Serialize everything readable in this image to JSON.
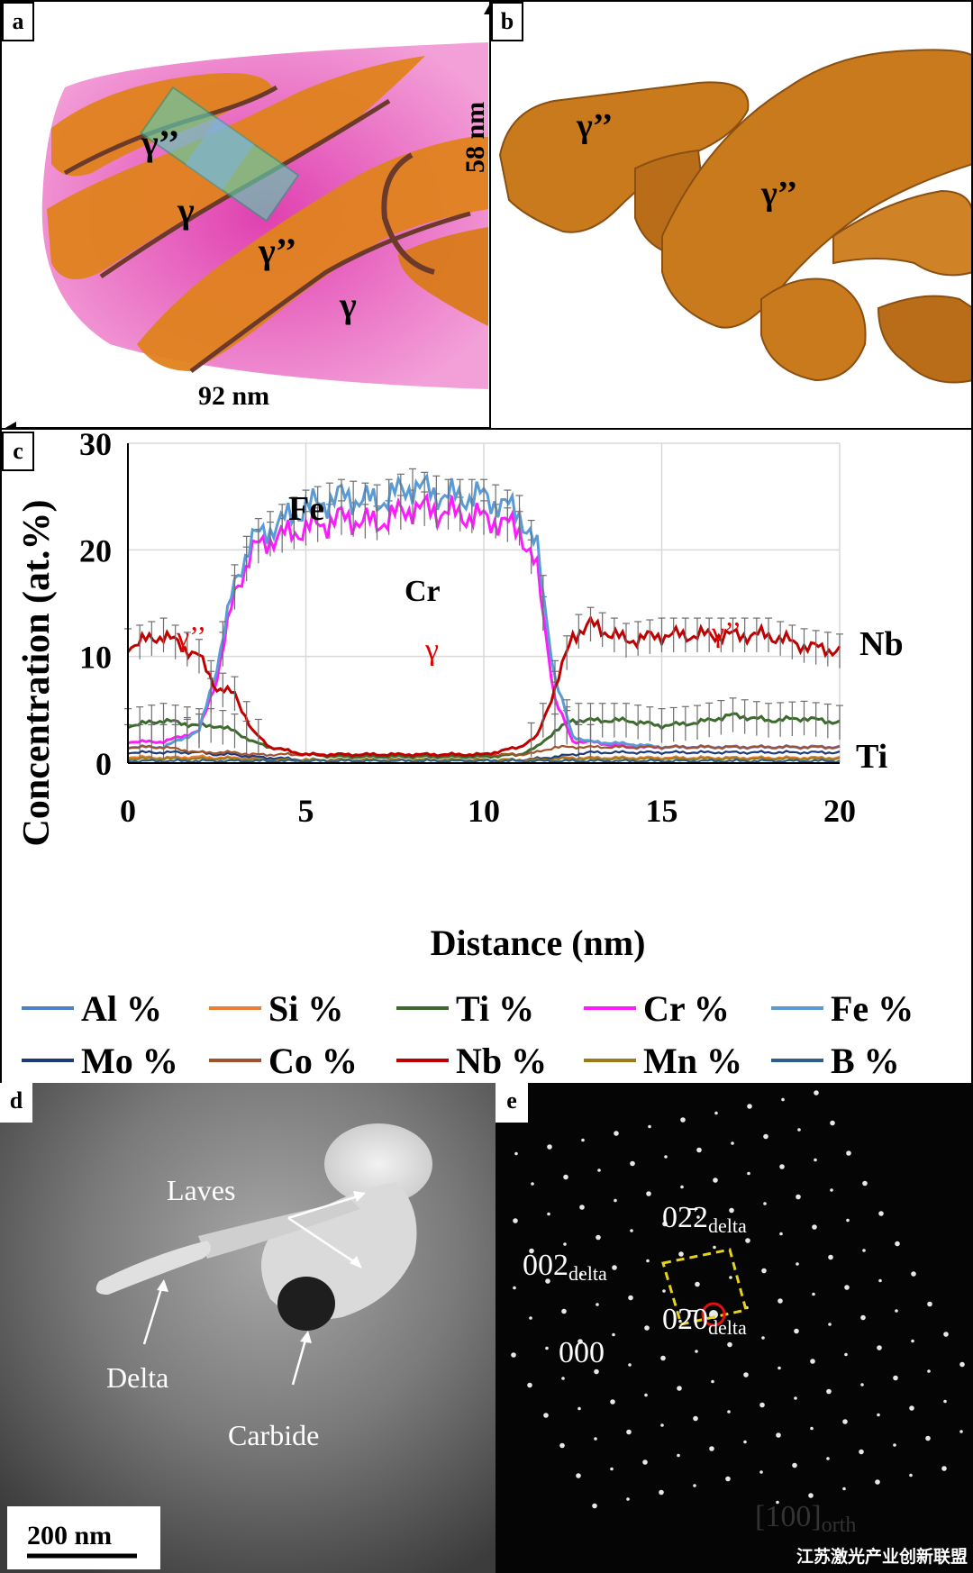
{
  "panels": {
    "a": {
      "label": "a",
      "phases": [
        "γ’’",
        "γ",
        "γ’’",
        "γ"
      ],
      "width_label": "92 nm",
      "height_label": "58 nm"
    },
    "b": {
      "label": "b",
      "phases": [
        "γ’’",
        "γ’’"
      ]
    },
    "c": {
      "label": "c",
      "annotations": {
        "fe": "Fe",
        "cr": "Cr",
        "nb": "Nb",
        "ti": "Ti",
        "gpp_left": "γ’’",
        "gamma": "γ",
        "gpp_right": "γ’’"
      }
    },
    "d": {
      "label": "d",
      "labels": {
        "laves": "Laves",
        "delta": "Delta",
        "carbide": "Carbide"
      },
      "scalebar": "200 nm"
    },
    "e": {
      "label": "e",
      "spots": {
        "s002": "002",
        "s022": "02̄2",
        "s020": "02̄0",
        "sub": "delta",
        "s000": "000"
      },
      "zone_axis": "[100]",
      "zone_sub": "orth"
    }
  },
  "chart_data": {
    "type": "line",
    "title": "",
    "xlabel": "Distance (nm)",
    "ylabel": "Concentration (at.%)",
    "xlim": [
      0,
      20
    ],
    "ylim": [
      0,
      30
    ],
    "xticks": [
      "0",
      "5",
      "10",
      "15",
      "20"
    ],
    "yticks": [
      "0",
      "10",
      "20",
      "30"
    ],
    "grid": true,
    "legend_position": "bottom",
    "x": [
      0,
      1,
      2,
      2.5,
      3,
      3.5,
      4,
      5,
      6,
      7,
      8,
      9,
      10,
      11,
      11.5,
      12,
      12.5,
      13,
      14,
      15,
      16,
      17,
      18,
      19,
      20
    ],
    "series": [
      {
        "name": "Al %",
        "color": "#4f7fc4",
        "values": [
          0.5,
          0.5,
          0.5,
          0.5,
          0.5,
          0.5,
          0.5,
          0.3,
          0.3,
          0.3,
          0.3,
          0.3,
          0.3,
          0.3,
          0.4,
          0.5,
          0.5,
          0.5,
          0.5,
          0.5,
          0.5,
          0.5,
          0.5,
          0.5,
          0.5
        ]
      },
      {
        "name": "Si %",
        "color": "#ed7d31",
        "values": [
          0.6,
          0.5,
          0.6,
          0.5,
          0.5,
          0.4,
          0.4,
          0.3,
          0.3,
          0.3,
          0.3,
          0.3,
          0.3,
          0.3,
          0.3,
          0.4,
          0.5,
          0.5,
          0.5,
          0.5,
          0.5,
          0.5,
          0.5,
          0.5,
          0.5
        ]
      },
      {
        "name": "Ti %",
        "color": "#3a6b2a",
        "values": [
          3.5,
          4,
          3.5,
          3.5,
          3,
          2,
          1.5,
          0.8,
          0.6,
          0.6,
          0.6,
          0.6,
          0.6,
          0.8,
          1.5,
          3,
          4,
          4,
          4,
          3.5,
          3.8,
          4.5,
          4,
          4.2,
          3.8
        ]
      },
      {
        "name": "Cr %",
        "color": "#ff1aff",
        "values": [
          2,
          2,
          3,
          8,
          16,
          20,
          21,
          22,
          23,
          22.5,
          24,
          23.5,
          23,
          22,
          18,
          6,
          2,
          2,
          1.5,
          1.5,
          1.5,
          1.5,
          1.5,
          1.5,
          1.5
        ]
      },
      {
        "name": "Fe %",
        "color": "#5b9bd5",
        "values": [
          1.5,
          1.5,
          3,
          9,
          17,
          21,
          22,
          24,
          25,
          24.5,
          26,
          25,
          25,
          23.5,
          20,
          8,
          2.5,
          2,
          1.8,
          1.5,
          1.5,
          1.5,
          1.5,
          1.5,
          1.5
        ]
      },
      {
        "name": "Mo %",
        "color": "#1f3a7a",
        "values": [
          1,
          1,
          1,
          0.8,
          0.8,
          0.6,
          0.5,
          0.3,
          0.3,
          0.3,
          0.3,
          0.3,
          0.3,
          0.3,
          0.4,
          0.6,
          0.8,
          1,
          1,
          1,
          1,
          1,
          1,
          1,
          1
        ]
      },
      {
        "name": "Co %",
        "color": "#a0522d",
        "values": [
          1.5,
          1.5,
          1,
          1,
          1,
          0.8,
          0.8,
          0.8,
          0.8,
          0.8,
          0.8,
          0.8,
          0.8,
          0.8,
          1,
          1.5,
          1.5,
          1.5,
          1.5,
          1.5,
          1.5,
          1.5,
          1.5,
          1.5,
          1.5
        ]
      },
      {
        "name": "Nb %",
        "color": "#c00000",
        "values": [
          11,
          12,
          10,
          7,
          6.5,
          3,
          1.5,
          0.8,
          0.8,
          0.8,
          0.8,
          0.8,
          0.8,
          1.5,
          2.5,
          7,
          12,
          13,
          11.5,
          12,
          12,
          12,
          12,
          11,
          10.5
        ]
      },
      {
        "name": "Mn %",
        "color": "#9b7a1a",
        "values": [
          0.4,
          0.4,
          0.4,
          0.4,
          0.4,
          0.3,
          0.3,
          0.3,
          0.3,
          0.3,
          0.3,
          0.3,
          0.3,
          0.3,
          0.3,
          0.4,
          0.4,
          0.4,
          0.4,
          0.4,
          0.4,
          0.4,
          0.4,
          0.4,
          0.4
        ]
      },
      {
        "name": "B %",
        "color": "#2e5f8c",
        "values": [
          0.2,
          0.2,
          0.2,
          0.2,
          0.2,
          0.2,
          0.2,
          0.2,
          0.2,
          0.2,
          0.2,
          0.2,
          0.2,
          0.2,
          0.2,
          0.2,
          0.2,
          0.2,
          0.2,
          0.2,
          0.2,
          0.2,
          0.2,
          0.2,
          0.2
        ]
      }
    ]
  },
  "watermark": "江苏激光产业创新联盟"
}
